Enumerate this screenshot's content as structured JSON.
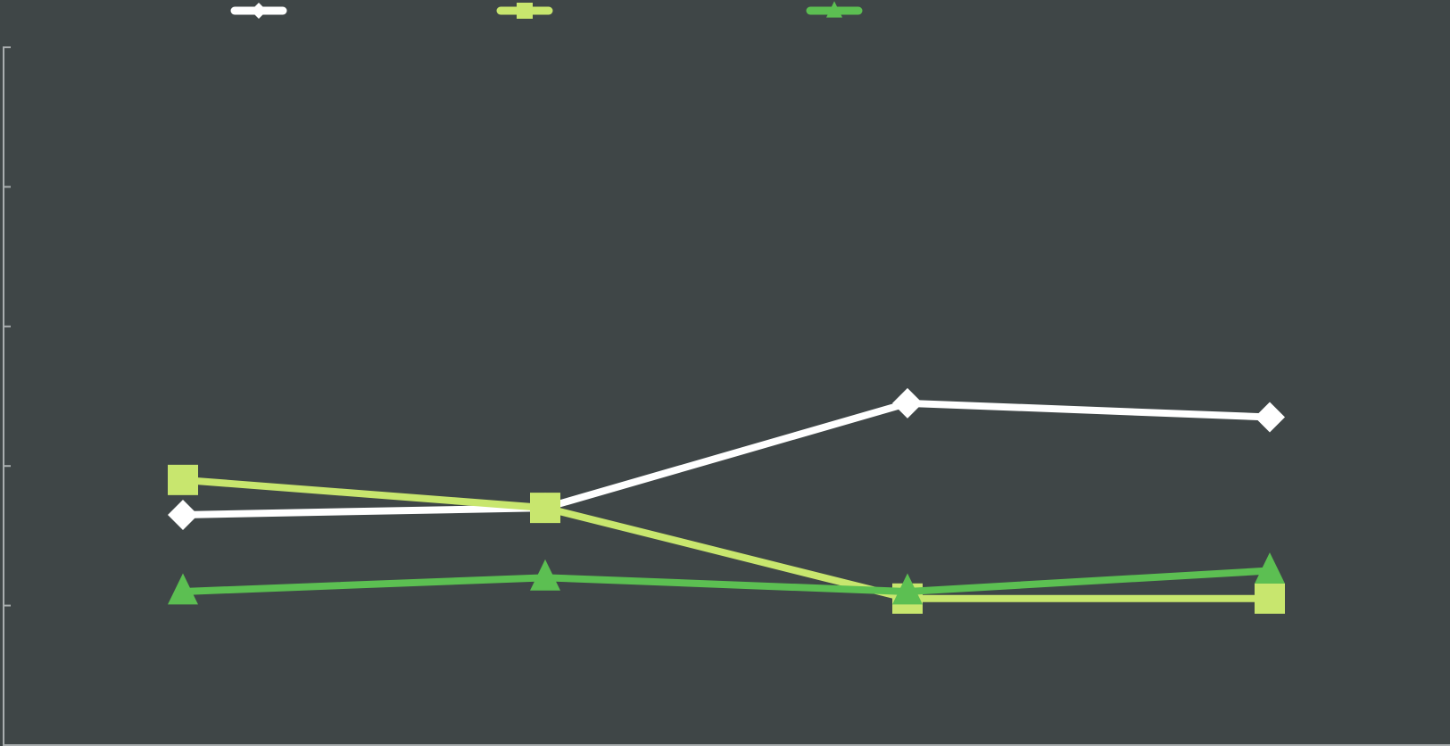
{
  "chart_data": {
    "type": "line",
    "title": "",
    "xlabel": "",
    "ylabel": "",
    "x": [
      1,
      2,
      3,
      4
    ],
    "ylim": [
      0,
      5
    ],
    "yticks": [
      0,
      1,
      2,
      3,
      4,
      5
    ],
    "grid": false,
    "legend": {
      "placement": "top",
      "labels_visible": false
    },
    "background": "#3f4647",
    "series": [
      {
        "marker": "diamond",
        "color": "#ffffff",
        "values": [
          1.65,
          1.7,
          2.45,
          2.35
        ]
      },
      {
        "marker": "square",
        "color": "#c8e66e",
        "values": [
          1.9,
          1.7,
          1.05,
          1.05
        ]
      },
      {
        "marker": "triangle",
        "color": "#5cbf52",
        "values": [
          1.1,
          1.2,
          1.1,
          1.25
        ]
      }
    ]
  }
}
